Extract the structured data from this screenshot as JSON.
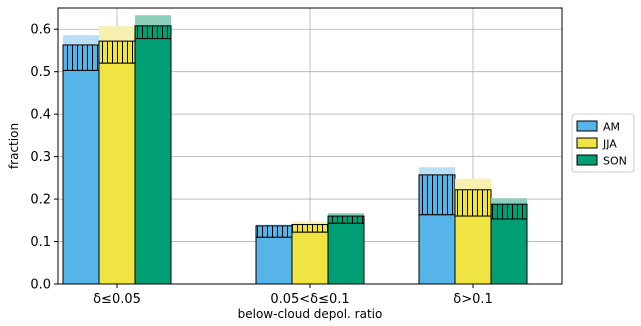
{
  "chart_data": {
    "type": "bar",
    "xlabel": "below-cloud depol. ratio",
    "ylabel": "fraction",
    "ylim": [
      0,
      0.65
    ],
    "yticks": [
      0.0,
      0.1,
      0.2,
      0.3,
      0.4,
      0.5,
      0.6
    ],
    "ytick_labels": [
      "0.0",
      "0.1",
      "0.2",
      "0.3",
      "0.4",
      "0.5",
      "0.6"
    ],
    "categories": [
      "δ≤0.05",
      "0.05<δ≤0.1",
      "δ>0.1"
    ],
    "grid": true,
    "legend_position": "right",
    "stack_components": [
      "solid base",
      "hatched middle",
      "light top"
    ],
    "series": [
      {
        "name": "AM",
        "color": "#56b4e9",
        "light_color": "#b9dff5",
        "base": [
          0.503,
          0.11,
          0.163
        ],
        "hatched_top": [
          0.563,
          0.137,
          0.257
        ],
        "total": [
          0.586,
          0.14,
          0.275
        ]
      },
      {
        "name": "JJA",
        "color": "#f0e442",
        "light_color": "#f7f0ae",
        "base": [
          0.52,
          0.122,
          0.16
        ],
        "hatched_top": [
          0.572,
          0.14,
          0.222
        ],
        "total": [
          0.607,
          0.147,
          0.248
        ]
      },
      {
        "name": "SON",
        "color": "#009e73",
        "light_color": "#8fd0bd",
        "base": [
          0.578,
          0.143,
          0.153
        ],
        "hatched_top": [
          0.608,
          0.16,
          0.188
        ],
        "total": [
          0.633,
          0.167,
          0.202
        ]
      }
    ]
  }
}
